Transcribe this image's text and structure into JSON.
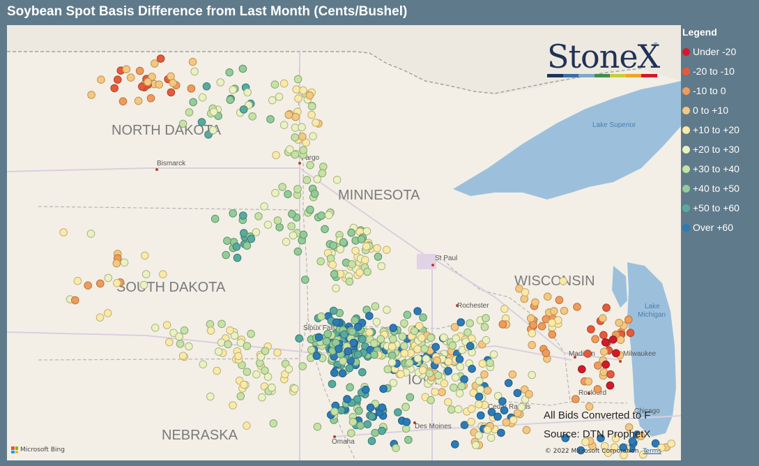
{
  "title": "Soybean Spot Basis Difference from Last Month (Cents/Bushel)",
  "legend": {
    "title": "Legend",
    "items": [
      {
        "label": "Under -20",
        "color": "#d7182a"
      },
      {
        "label": "-20 to -10",
        "color": "#e8593c"
      },
      {
        "label": "-10 to 0",
        "color": "#f19a5a"
      },
      {
        "label": "0 to +10",
        "color": "#f7c77f"
      },
      {
        "label": "+10 to +20",
        "color": "#fbe9a6"
      },
      {
        "label": "+20 to +30",
        "color": "#ebf2c0"
      },
      {
        "label": "+30 to +40",
        "color": "#c6e3a4"
      },
      {
        "label": "+40 to +50",
        "color": "#93cc98"
      },
      {
        "label": "+50 to +60",
        "color": "#56ab9f"
      },
      {
        "label": "Over +60",
        "color": "#2c7bb6"
      }
    ]
  },
  "logo": {
    "text": "StoneX",
    "tm": "™",
    "bar_colors": [
      "#1f3256",
      "#3a6ea5",
      "#7fa7c9",
      "#3f8f4f",
      "#c6cf3a",
      "#f0a52b",
      "#d7182a"
    ]
  },
  "states": [
    "NORTH DAKOTA",
    "SOUTH DAKOTA",
    "MINNESOTA",
    "WISCONSIN",
    "NEBRASKA",
    "IOWA"
  ],
  "cities": [
    "Bismarck",
    "Fargo",
    "St Paul",
    "Rochester",
    "Madison",
    "Milwaukee",
    "Rockford",
    "Chicago",
    "Cedar Rapids",
    "Omaha",
    "Des Moines",
    "Sioux Falls"
  ],
  "water": [
    "Lake Superior",
    "Lake Michigan"
  ],
  "notes": {
    "line1": "All Bids Converted to F",
    "line2": "Source: DTN ProphetX"
  },
  "attribution": {
    "bing": "Microsoft Bing",
    "copyright": "© 2022 Microsoft Corporation",
    "terms": "Terms"
  }
}
